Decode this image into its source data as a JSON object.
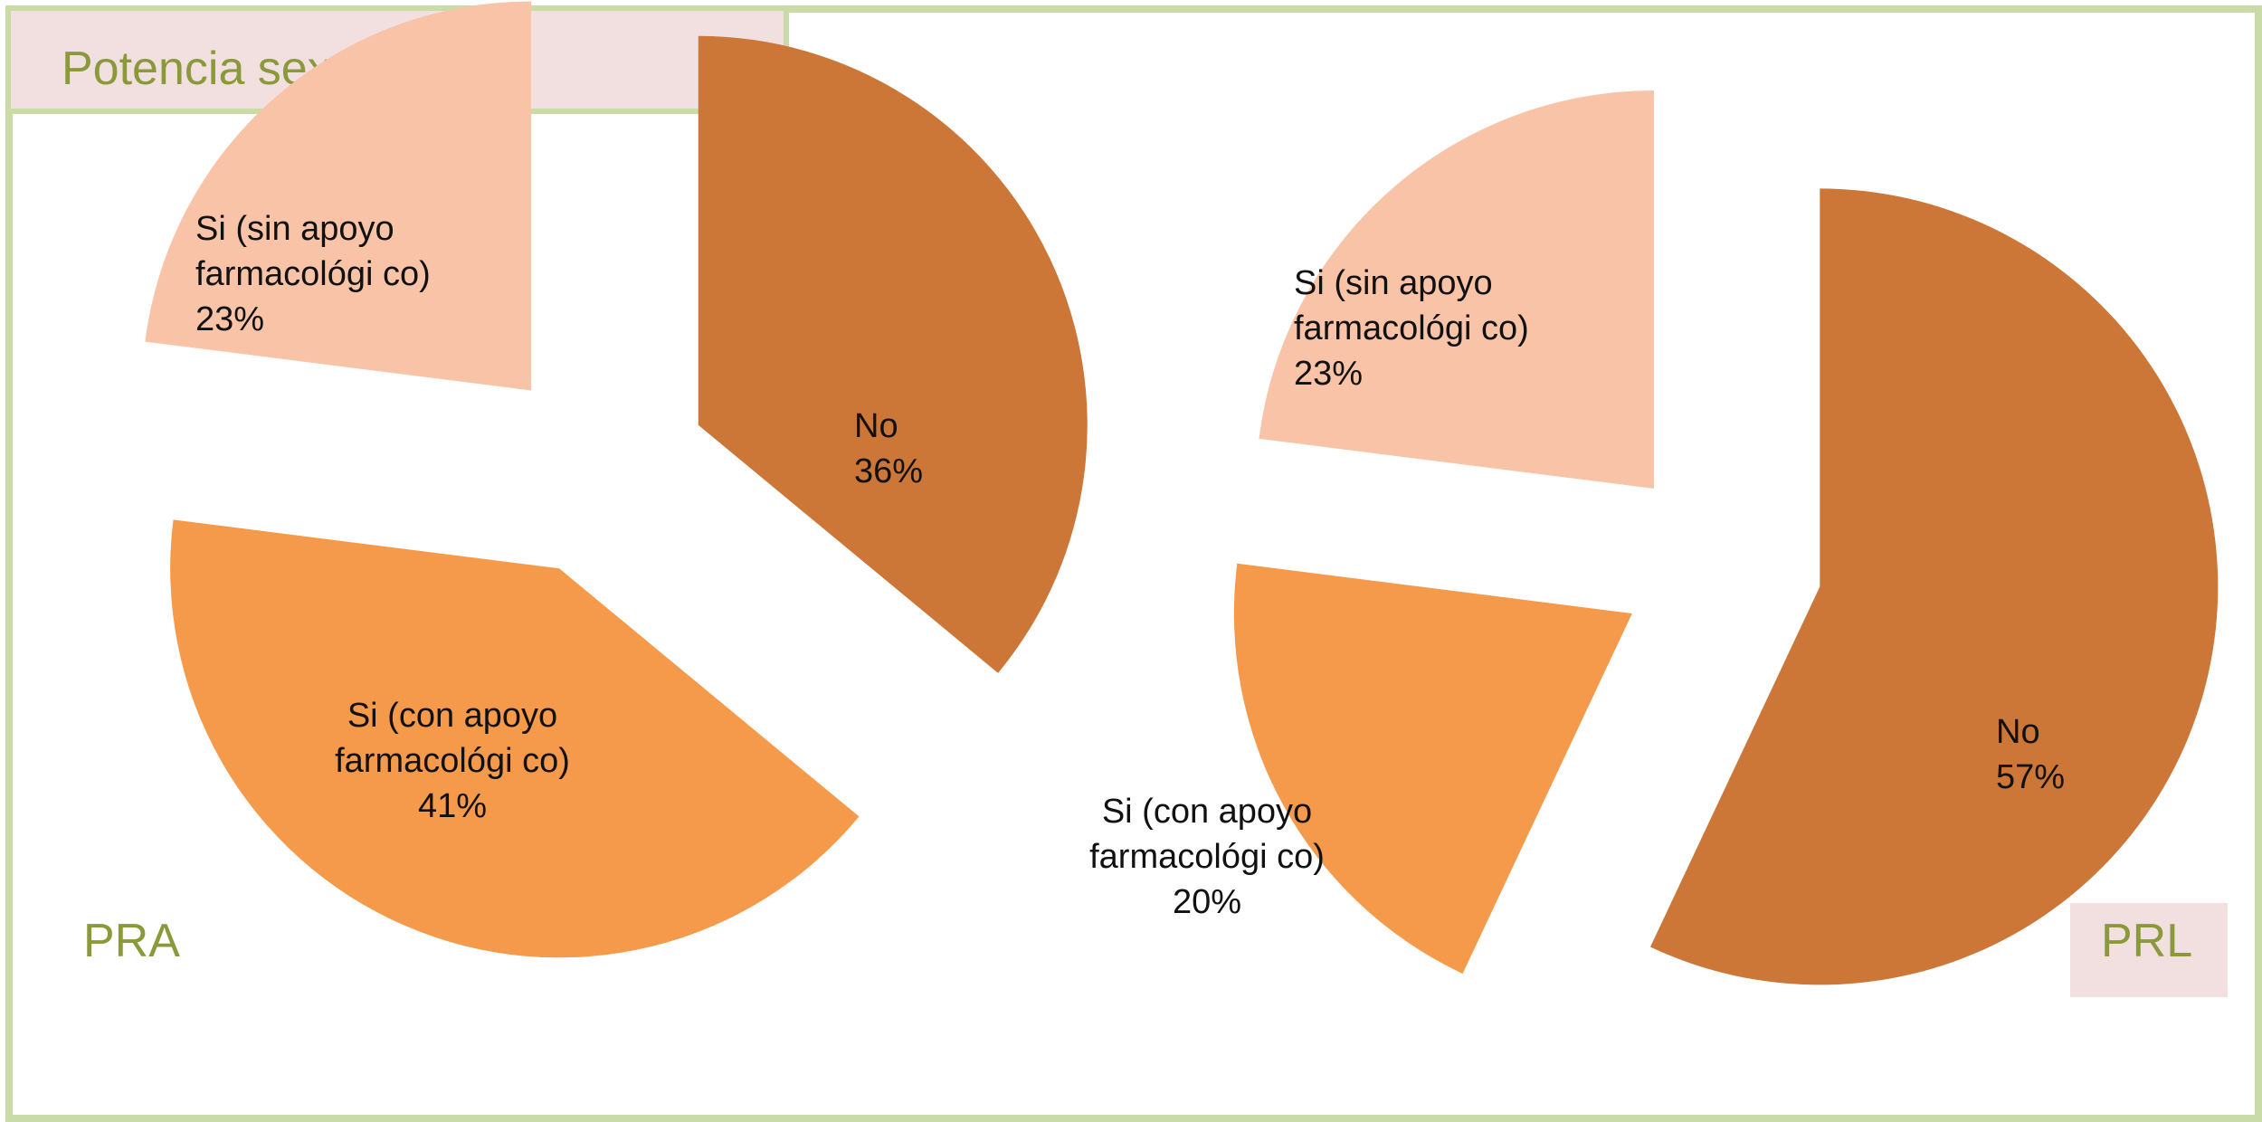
{
  "title": "Potencia sexual",
  "colors": {
    "frame": "#c9dba6",
    "title_bg": "#f2e0e1",
    "title_text": "#8a9a3a",
    "no": "#cc7637",
    "con_apoyo": "#f59a4a",
    "sin_apoyo": "#f9c3a8"
  },
  "chart_data": [
    {
      "type": "pie",
      "title": "PRA",
      "slices": [
        {
          "name": "No",
          "value": 36,
          "line1": "No",
          "line2": "",
          "pct": "36%"
        },
        {
          "name": "Si (con apoyo farmacológi co)",
          "value": 41,
          "line1": "Si (con apoyo",
          "line2": "farmacológi co)",
          "pct": "41%"
        },
        {
          "name": "Si (sin apoyo farmacológi co)",
          "value": 23,
          "line1": "Si (sin apoyo",
          "line2": "farmacológi co)",
          "pct": "23%"
        }
      ]
    },
    {
      "type": "pie",
      "title": "PRL",
      "slices": [
        {
          "name": "No",
          "value": 57,
          "line1": "No",
          "line2": "",
          "pct": "57%"
        },
        {
          "name": "Si (con apoyo farmacológi co)",
          "value": 20,
          "line1": "Si (con apoyo",
          "line2": "farmacológi co)",
          "pct": "20%"
        },
        {
          "name": "Si (sin apoyo farmacológi co)",
          "value": 23,
          "line1": "Si (sin apoyo",
          "line2": "farmacológi co)",
          "pct": "23%"
        }
      ]
    }
  ]
}
